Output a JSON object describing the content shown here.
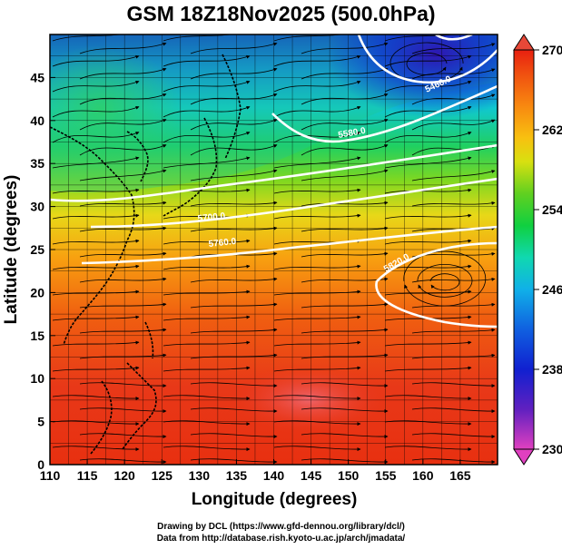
{
  "title": "GSM 18Z18Nov2025 (500.0hPa)",
  "map": {
    "lon_range": [
      110,
      170
    ],
    "lat_range": [
      0,
      50
    ],
    "x_ticks": [
      110,
      115,
      120,
      125,
      130,
      135,
      140,
      145,
      150,
      155,
      160,
      165
    ],
    "y_ticks": [
      0,
      5,
      10,
      15,
      20,
      25,
      30,
      35,
      40,
      45
    ],
    "xlabel": "Longitude (degrees)",
    "ylabel": "Latitude  (degrees)",
    "grid": true,
    "shaded_field": "temperature",
    "contour_field": "geopotential height",
    "vector_field": "wind streamlines"
  },
  "colorbar": {
    "min": 230,
    "max": 270,
    "tick_labels": [
      "230",
      "238",
      "246",
      "254",
      "262",
      "270"
    ],
    "colors": [
      "#e040c0",
      "#6020c0",
      "#1020d0",
      "#1060e0",
      "#10b0e8",
      "#10d8b0",
      "#10d040",
      "#60d020",
      "#d8e010",
      "#f8c010",
      "#f88810",
      "#f05010",
      "#e82010"
    ]
  },
  "contour_labels": [
    {
      "text": "5820.0"
    },
    {
      "text": "5700.0"
    },
    {
      "text": "5460.0"
    },
    {
      "text": "5580.0"
    },
    {
      "text": "5760.0"
    }
  ],
  "credits": {
    "line1": "Drawing by DCL (https://www.gfd-dennou.org/library/dcl/)",
    "line2": "Data from http://database.rish.kyoto-u.ac.jp/arch/jmadata/"
  }
}
